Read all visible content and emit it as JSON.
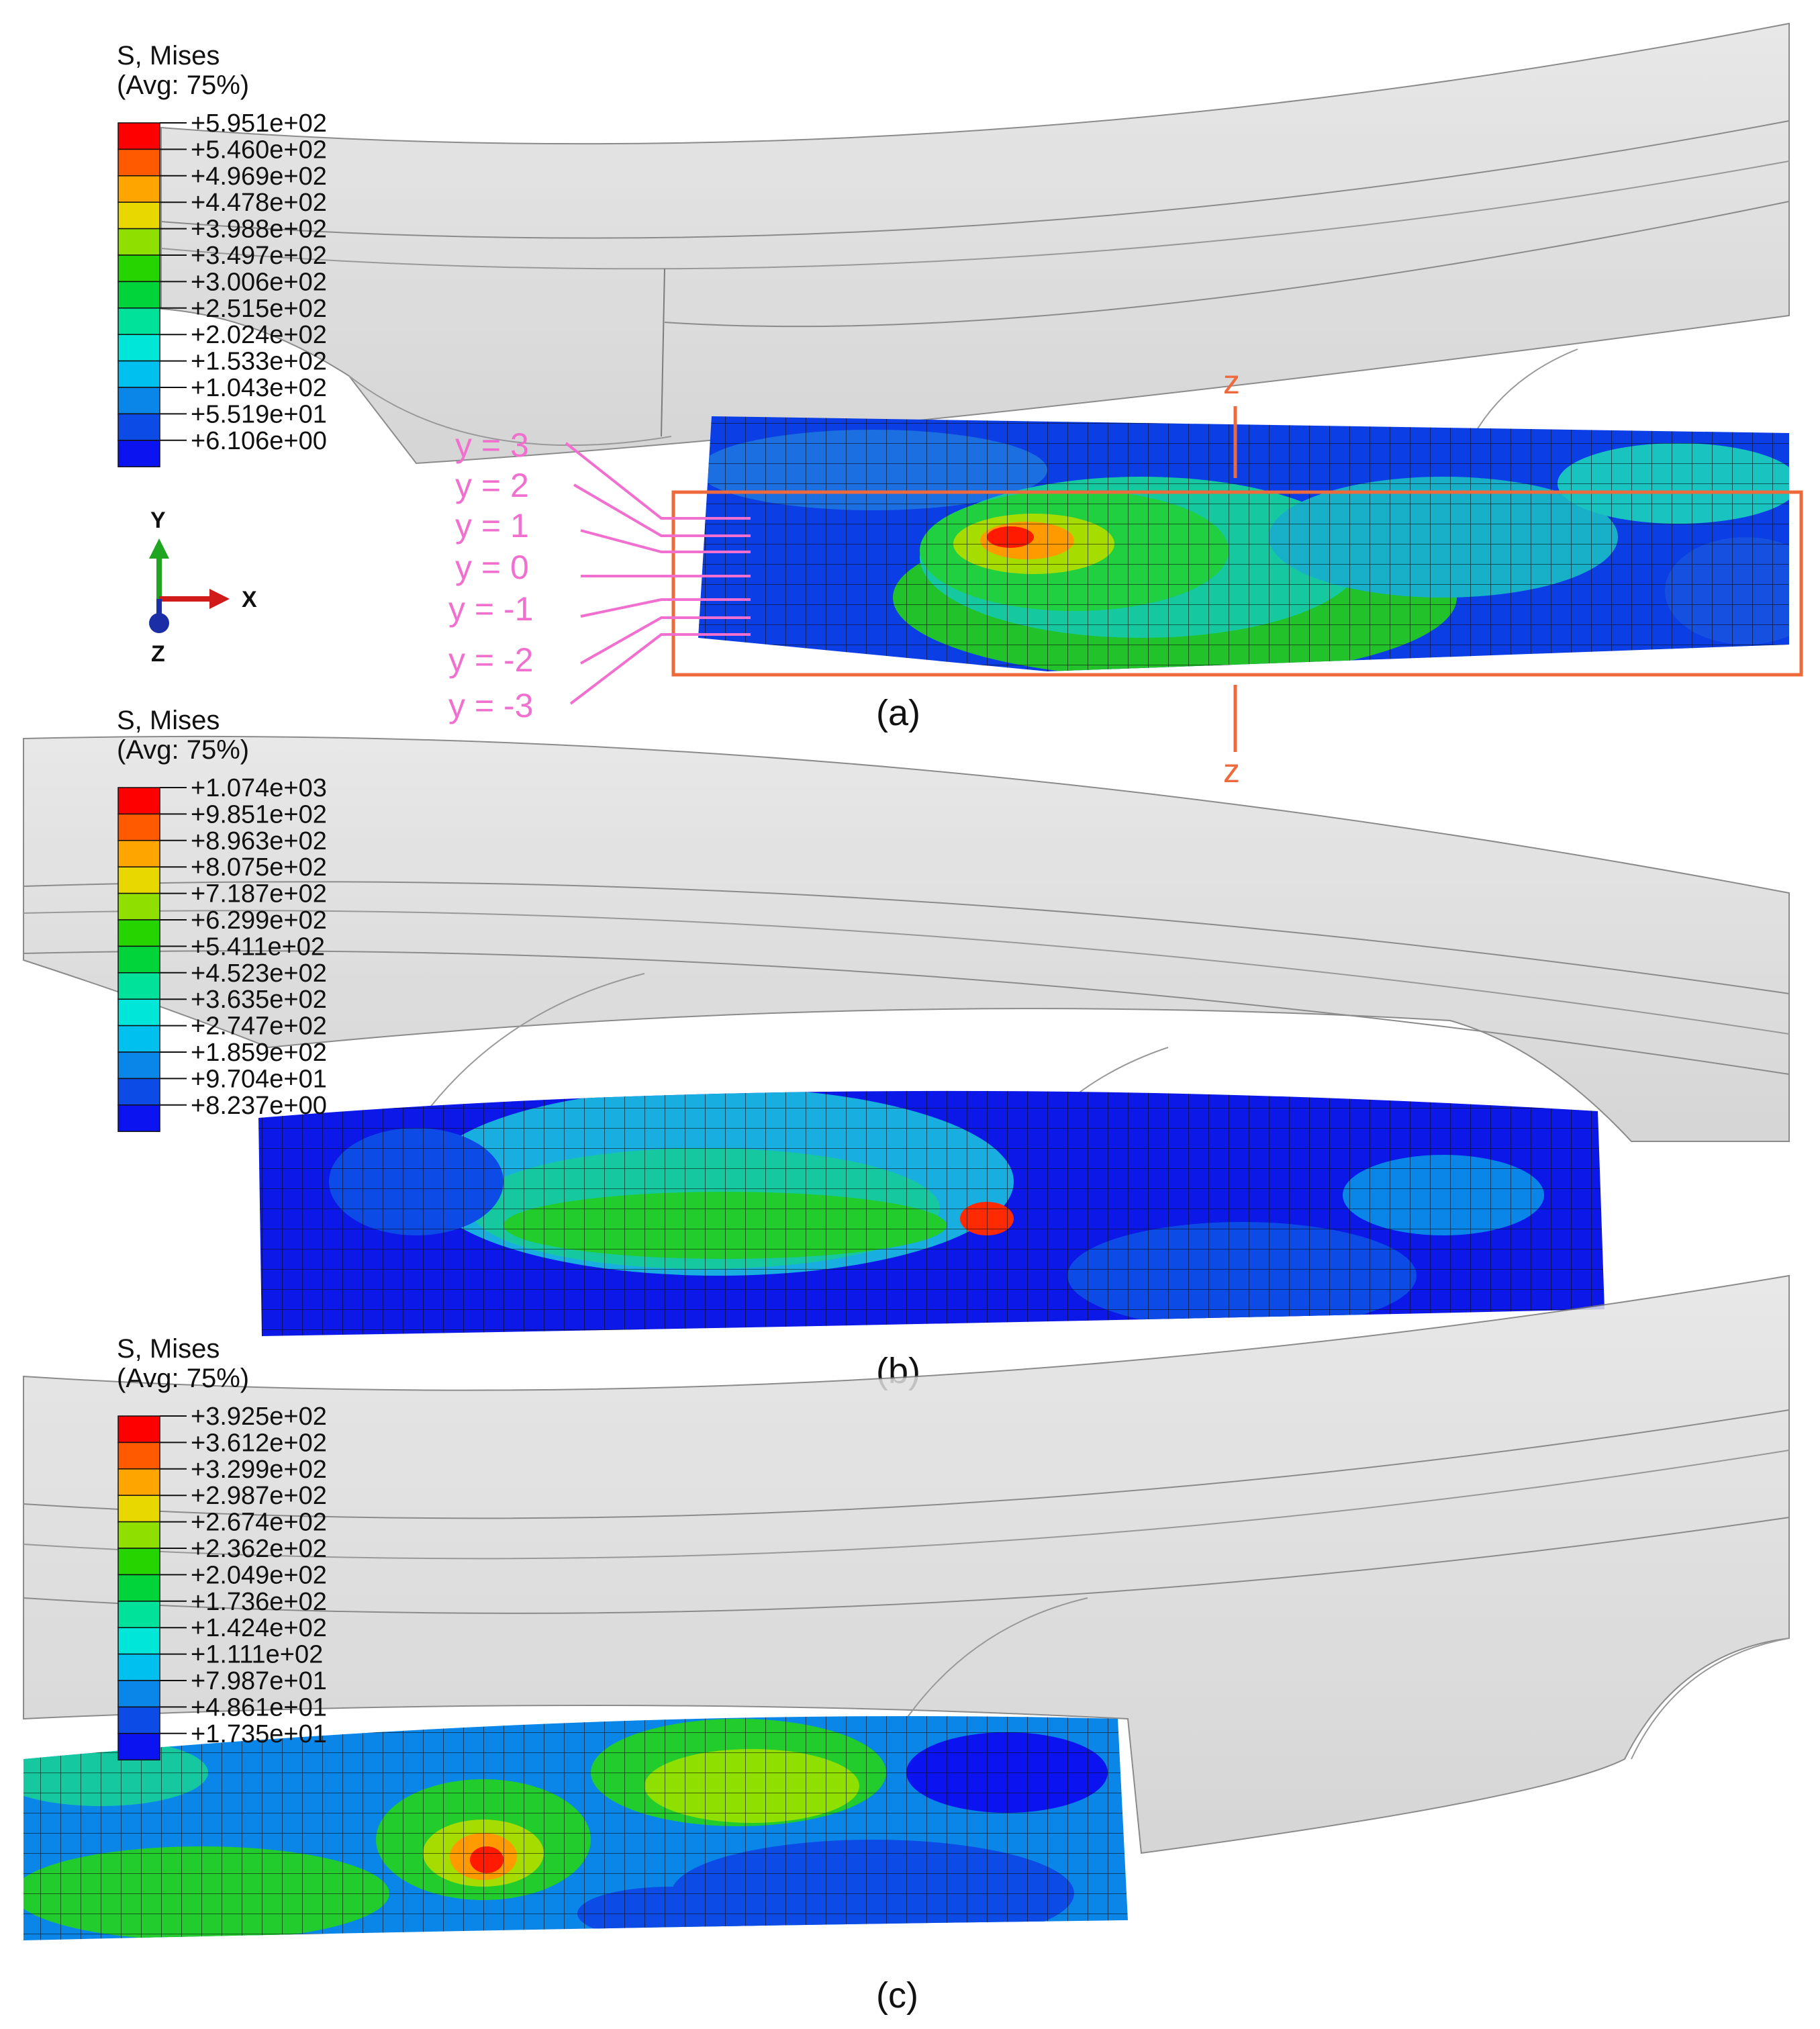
{
  "panels": [
    {
      "id": "a",
      "caption": "(a)",
      "legend": {
        "title": "S, Mises",
        "subtitle": "(Avg: 75%)",
        "values": [
          "+5.951e+02",
          "+5.460e+02",
          "+4.969e+02",
          "+4.478e+02",
          "+3.988e+02",
          "+3.497e+02",
          "+3.006e+02",
          "+2.515e+02",
          "+2.024e+02",
          "+1.533e+02",
          "+1.043e+02",
          "+5.519e+01",
          "+6.106e+00"
        ]
      }
    },
    {
      "id": "b",
      "caption": "(b)",
      "legend": {
        "title": "S, Mises",
        "subtitle": "(Avg: 75%)",
        "values": [
          "+1.074e+03",
          "+9.851e+02",
          "+8.963e+02",
          "+8.075e+02",
          "+7.187e+02",
          "+6.299e+02",
          "+5.411e+02",
          "+4.523e+02",
          "+3.635e+02",
          "+2.747e+02",
          "+1.859e+02",
          "+9.704e+01",
          "+8.237e+00"
        ]
      }
    },
    {
      "id": "c",
      "caption": "(c)",
      "legend": {
        "title": "S, Mises",
        "subtitle": "(Avg: 75%)",
        "values": [
          "+3.925e+02",
          "+3.612e+02",
          "+3.299e+02",
          "+2.987e+02",
          "+2.674e+02",
          "+2.362e+02",
          "+2.049e+02",
          "+1.736e+02",
          "+1.424e+02",
          "+1.111e+02",
          "+7.987e+01",
          "+4.861e+01",
          "+1.735e+01"
        ]
      }
    }
  ],
  "colorbar_colors": [
    "#ff0000",
    "#ff5a00",
    "#ffa500",
    "#e8d800",
    "#8fe000",
    "#26d400",
    "#00d43a",
    "#00e29a",
    "#00e6d8",
    "#00c0f0",
    "#0a86e8",
    "#0d4be6",
    "#0b13f0"
  ],
  "section_labels": {
    "y_levels": [
      "y = 3",
      "y = 2",
      "y = 1",
      "y = 0",
      "y = -1",
      "y = -2",
      "y = -3"
    ],
    "z_top": "z",
    "z_bottom": "z",
    "section_box_color": "#ee6a3c",
    "y_label_color": "#f06fcf"
  },
  "triad": {
    "x": "X",
    "y": "Y",
    "z": "Z"
  }
}
